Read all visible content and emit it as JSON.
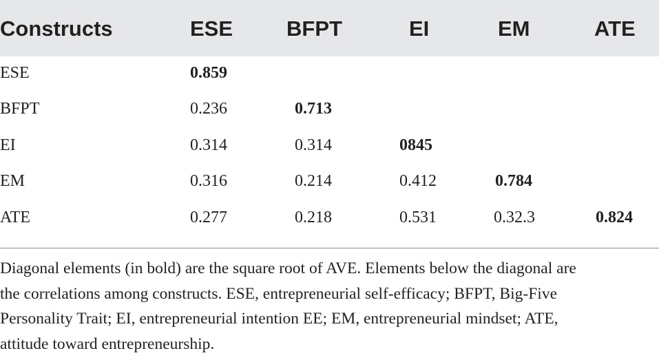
{
  "table": {
    "headers": [
      "Constructs",
      "ESE",
      "BFPT",
      "EI",
      "EM",
      "ATE"
    ],
    "rows": [
      {
        "label": "ESE",
        "cells": [
          "0.859",
          "",
          "",
          "",
          ""
        ],
        "bold_index": 0
      },
      {
        "label": "BFPT",
        "cells": [
          "0.236",
          "0.713",
          "",
          "",
          ""
        ],
        "bold_index": 1
      },
      {
        "label": "EI",
        "cells": [
          "0.314",
          "0.314",
          "0845",
          "",
          ""
        ],
        "bold_index": 2
      },
      {
        "label": "EM",
        "cells": [
          "0.316",
          "0.214",
          "0.412",
          "0.784",
          ""
        ],
        "bold_index": 3
      },
      {
        "label": "ATE",
        "cells": [
          "0.277",
          "0.218",
          "0.531",
          "0.32.3",
          "0.824"
        ],
        "bold_index": 4
      }
    ]
  },
  "footnote": {
    "lines": [
      "Diagonal elements (in bold) are the square root of AVE. Elements below the diagonal are",
      "the correlations among constructs. ESE, entrepreneurial self-efficacy; BFPT, Big-Five",
      "Personality Trait; EI, entrepreneurial intention EE; EM, entrepreneurial mindset; ATE,",
      "attitude toward entrepreneurship."
    ]
  }
}
